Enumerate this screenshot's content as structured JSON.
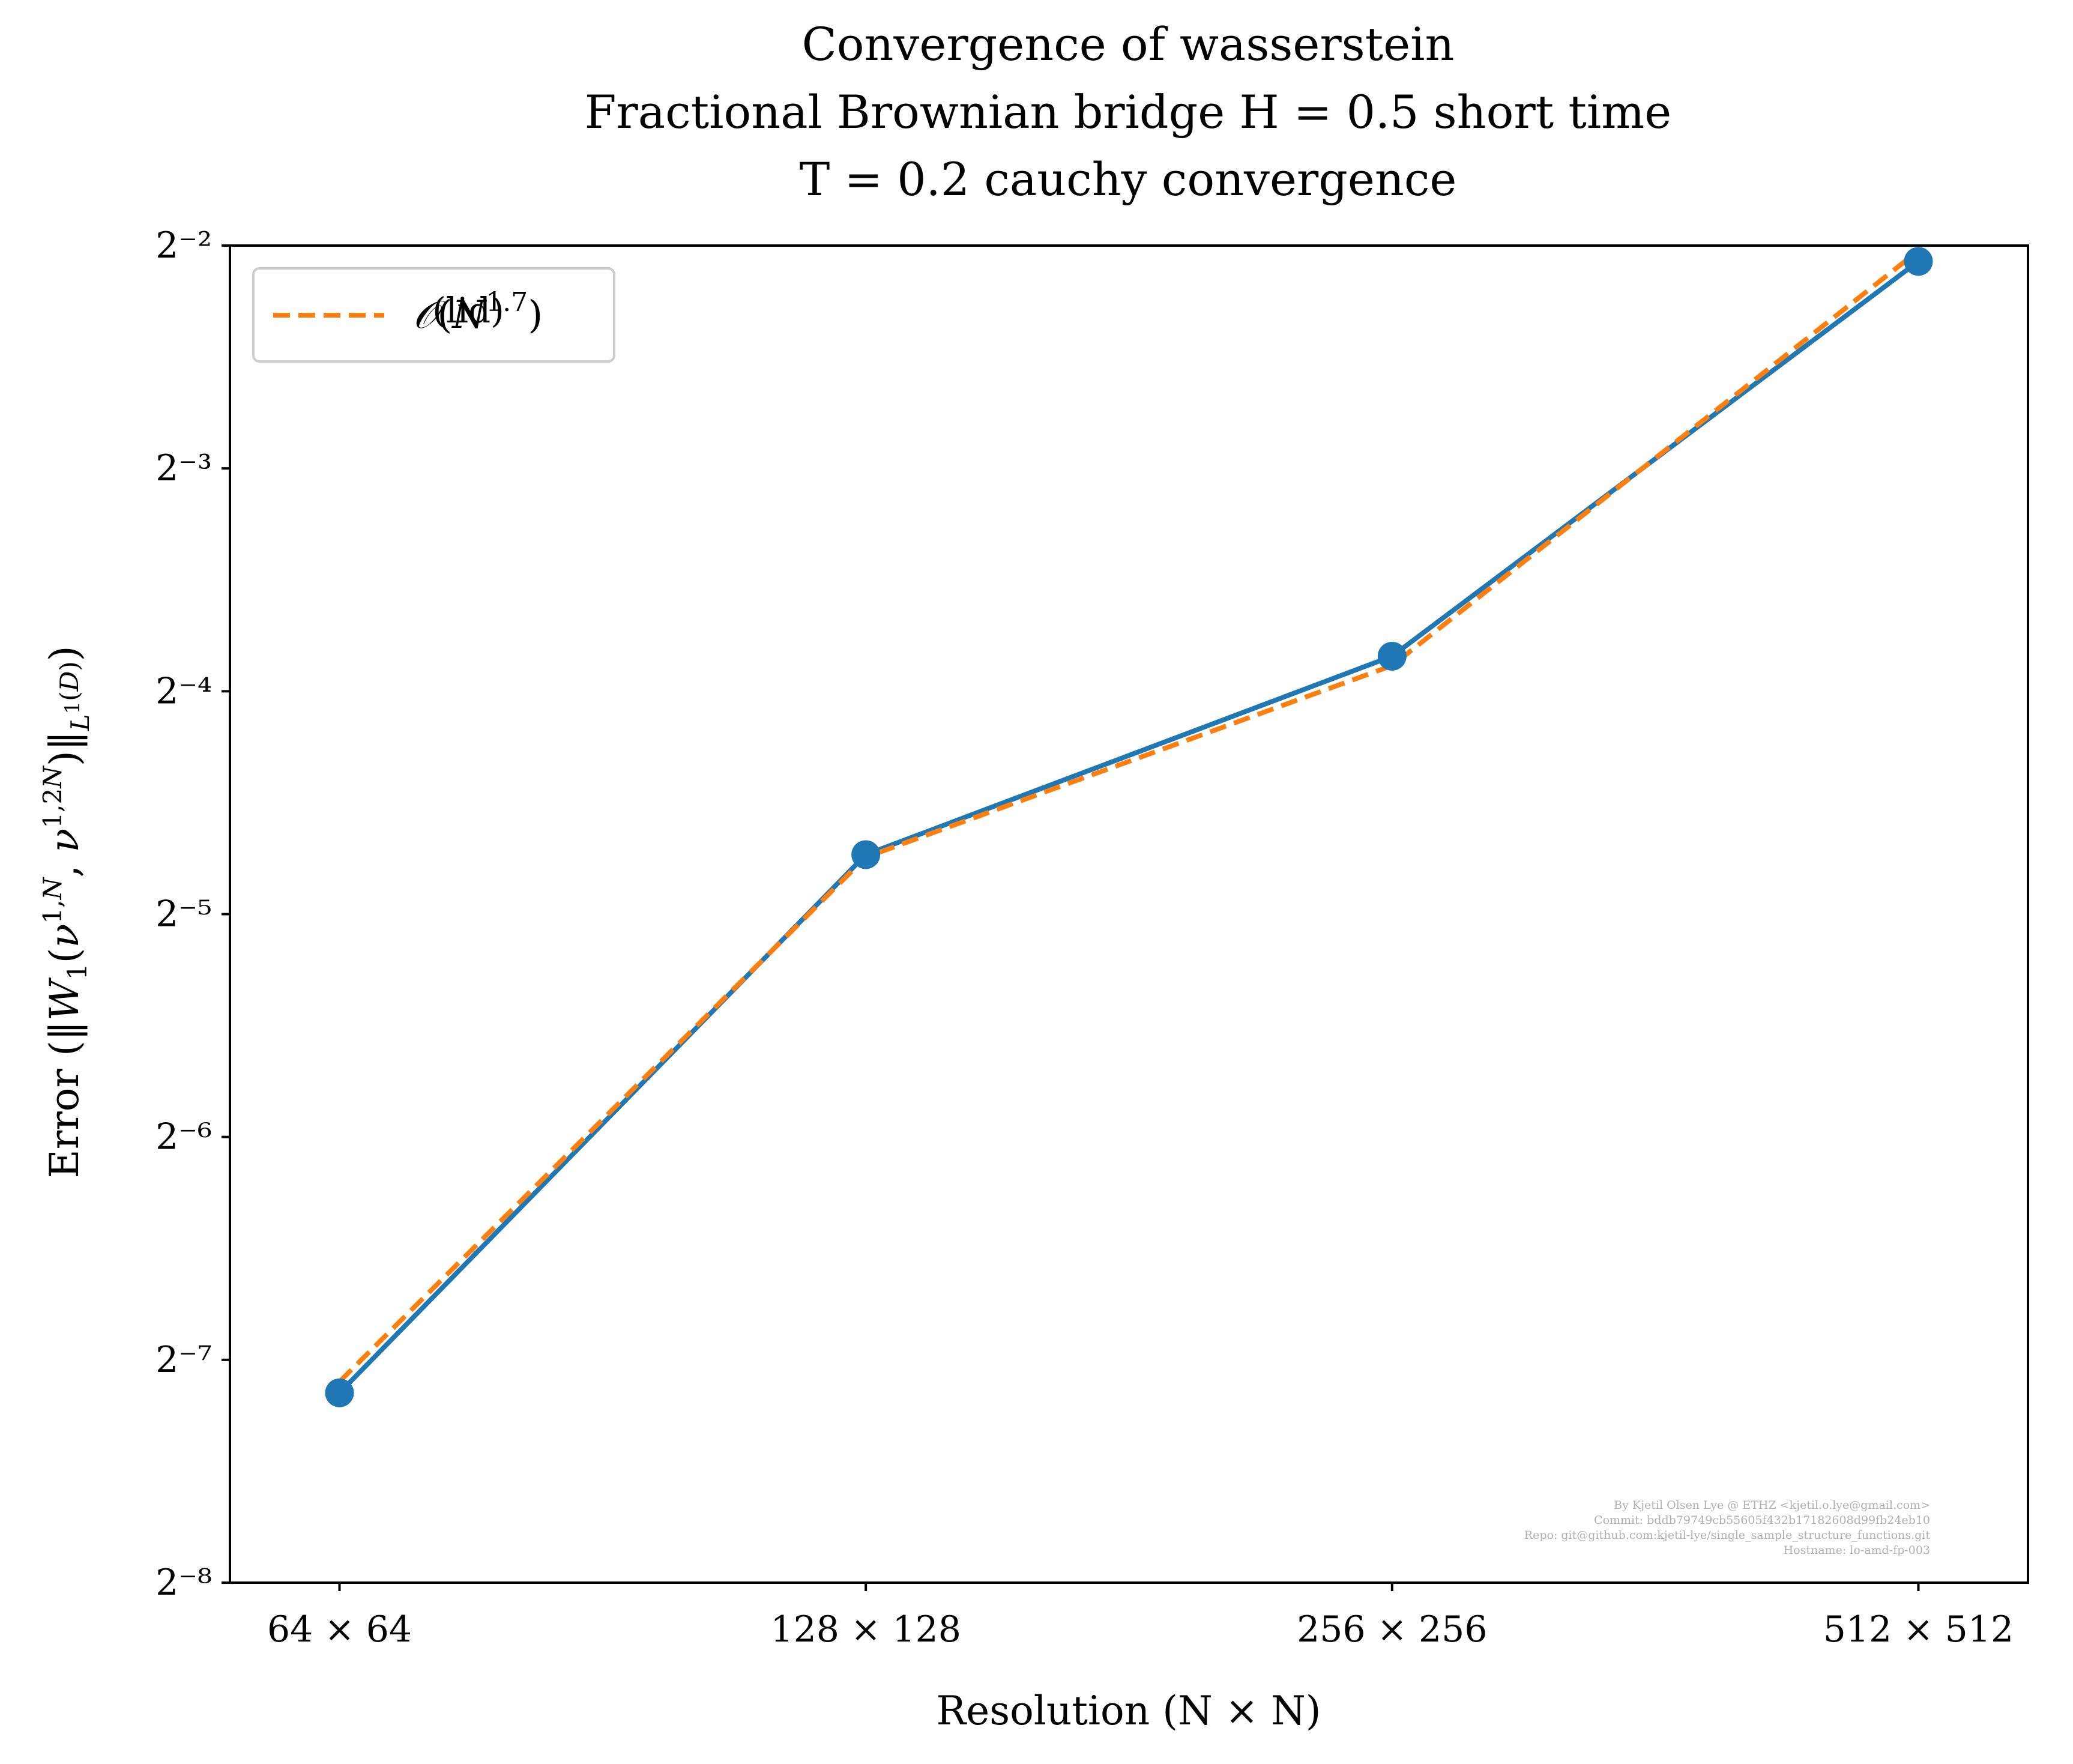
{
  "chart_data": {
    "type": "line",
    "title_lines": [
      "Convergence of wasserstein",
      "Fractional Brownian bridge H = 0.5 short time",
      "T = 0.2 cauchy convergence"
    ],
    "xlabel": "Resolution (N × N)",
    "ylabel": "Error (‖W₁(ν¹ʼᴺ, ν¹ʼ²ᴺ)‖_{L¹(D)})",
    "x_scale": "log2",
    "y_scale": "log2",
    "categories": [
      "64 × 64",
      "128 × 128",
      "256 × 256",
      "512 × 512"
    ],
    "x": [
      64,
      128,
      256,
      512
    ],
    "xlim": [
      55.4,
      591.5
    ],
    "ylim_log2": [
      -8,
      -2
    ],
    "ytick_labels": [
      "2⁻²",
      "2⁻³",
      "2⁻⁴",
      "2⁻⁵",
      "2⁻⁶",
      "2⁻⁷",
      "2⁻⁸"
    ],
    "ytick_exponents": [
      -2,
      -3,
      -4,
      -5,
      -6,
      -7,
      -8
    ],
    "series": [
      {
        "style": "solid-with-markers",
        "color": "#1f77b4",
        "values": [
          0.00705,
          0.0376,
          0.0697,
          0.238
        ]
      },
      {
        "name": "𝒪(N^{1.7})",
        "style": "dashed",
        "color": "#ff7f0e",
        "values": [
          0.0073,
          0.0373,
          0.0677,
          0.246
        ]
      }
    ],
    "legend": {
      "placement": "upper-left",
      "entries": [
        "𝒪(N^{1.7})"
      ],
      "faint_text": "(lid)"
    },
    "watermark_lines": [
      "By Kjetil Olsen Lye @ ETHZ <kjetil.o.lye@gmail.com>",
      "Commit: bddb79749cb55605f432b17182608d99fb24eb10",
      "Repo: git@github.com:kjetil-lye/single_sample_structure_functions.git",
      "Hostname: lo-amd-fp-003"
    ],
    "grid": false
  }
}
